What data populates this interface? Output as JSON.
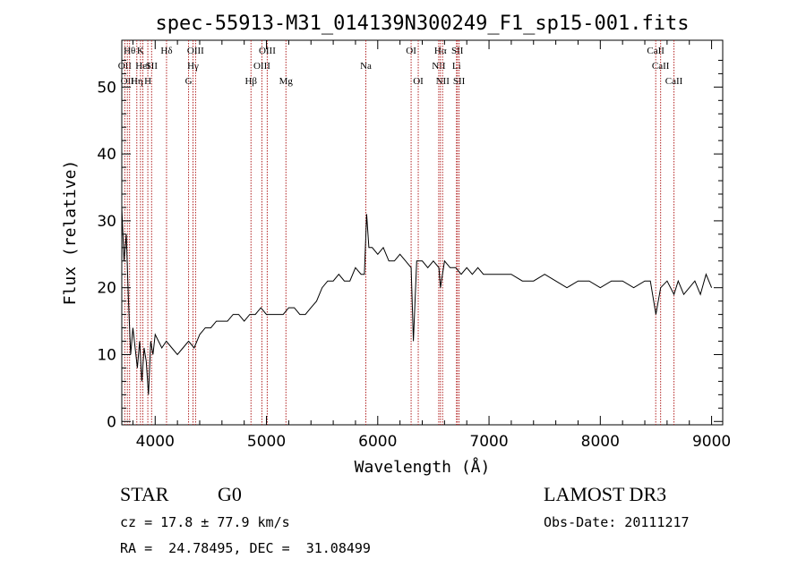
{
  "title": "spec-55913-M31_014139N300249_F1_sp15-001.fits",
  "info": {
    "class_label": "STAR",
    "subclass_label": "G0",
    "survey_label": "LAMOST DR3",
    "cz_text": "cz = 17.8 ± 77.9 km/s",
    "obsdate_text": "Obs-Date: 20111217",
    "radec_text": "RA =  24.78495, DEC =  31.08499"
  },
  "chart_data": {
    "type": "line",
    "title": "spec-55913-M31_014139N300249_F1_sp15-001.fits",
    "xlabel": "Wavelength (Å)",
    "ylabel": "Flux (relative)",
    "xlim": [
      3700,
      9100
    ],
    "ylim": [
      -0.5,
      57
    ],
    "xticks": [
      4000,
      5000,
      6000,
      7000,
      8000,
      9000
    ],
    "yticks": [
      0,
      10,
      20,
      30,
      40,
      50
    ],
    "grid": false,
    "line_color": "#000000",
    "marker_color": "#b22222",
    "series": [
      {
        "x": [
          3700,
          3720,
          3740,
          3760,
          3780,
          3800,
          3820,
          3840,
          3860,
          3880,
          3900,
          3920,
          3940,
          3960,
          3980,
          4000,
          4030,
          4060,
          4100,
          4150,
          4200,
          4250,
          4300,
          4350,
          4400,
          4450,
          4500,
          4550,
          4600,
          4650,
          4700,
          4750,
          4800,
          4850,
          4900,
          4950,
          5000,
          5050,
          5100,
          5150,
          5200,
          5250,
          5300,
          5350,
          5400,
          5450,
          5500,
          5550,
          5600,
          5650,
          5700,
          5750,
          5800,
          5850,
          5880,
          5900,
          5920,
          5950,
          6000,
          6050,
          6100,
          6150,
          6200,
          6250,
          6300,
          6320,
          6350,
          6400,
          6450,
          6500,
          6550,
          6563,
          6600,
          6650,
          6700,
          6750,
          6800,
          6850,
          6900,
          6950,
          7000,
          7100,
          7200,
          7300,
          7400,
          7500,
          7600,
          7700,
          7800,
          7900,
          8000,
          8100,
          8200,
          8300,
          8400,
          8450,
          8500,
          8542,
          8600,
          8662,
          8700,
          8750,
          8800,
          8850,
          8900,
          8950,
          9000
        ],
        "y": [
          32,
          24,
          28,
          18,
          10,
          14,
          11,
          8,
          12,
          6,
          11,
          9,
          4,
          12,
          10,
          13,
          12,
          11,
          12,
          11,
          10,
          11,
          12,
          11,
          13,
          14,
          14,
          15,
          15,
          15,
          16,
          16,
          15,
          16,
          16,
          17,
          16,
          16,
          16,
          16,
          17,
          17,
          16,
          16,
          17,
          18,
          20,
          21,
          21,
          22,
          21,
          21,
          23,
          22,
          22,
          31,
          26,
          26,
          25,
          26,
          24,
          24,
          25,
          24,
          23,
          12,
          24,
          24,
          23,
          24,
          23,
          20,
          24,
          23,
          23,
          22,
          23,
          22,
          23,
          22,
          22,
          22,
          22,
          21,
          21,
          22,
          21,
          20,
          21,
          21,
          20,
          21,
          21,
          20,
          21,
          21,
          16,
          20,
          21,
          19,
          21,
          19,
          20,
          21,
          19,
          22,
          20
        ]
      }
    ],
    "line_markers": [
      {
        "wl": 3727,
        "label": "OII",
        "row": 1
      },
      {
        "wl": 3750,
        "label": "OII",
        "row": 2
      },
      {
        "wl": 3770,
        "label": "Hθ",
        "row": 0
      },
      {
        "wl": 3835,
        "label": "Hη",
        "row": 2
      },
      {
        "wl": 3868,
        "label": "K",
        "row": 0
      },
      {
        "wl": 3889,
        "label": "HeI",
        "row": 1
      },
      {
        "wl": 3934,
        "label": "H",
        "row": 2
      },
      {
        "wl": 3968,
        "label": "SII",
        "row": 1
      },
      {
        "wl": 4102,
        "label": "Hδ",
        "row": 0
      },
      {
        "wl": 4300,
        "label": "G",
        "row": 2
      },
      {
        "wl": 4340,
        "label": "Hγ",
        "row": 1
      },
      {
        "wl": 4363,
        "label": "OIII",
        "row": 0
      },
      {
        "wl": 4861,
        "label": "Hβ",
        "row": 2
      },
      {
        "wl": 4959,
        "label": "OIII",
        "row": 1
      },
      {
        "wl": 5007,
        "label": "OIII",
        "row": 0
      },
      {
        "wl": 5175,
        "label": "Mg",
        "row": 2
      },
      {
        "wl": 5893,
        "label": "Na",
        "row": 1
      },
      {
        "wl": 6300,
        "label": "OI",
        "row": 0
      },
      {
        "wl": 6364,
        "label": "OI",
        "row": 2
      },
      {
        "wl": 6548,
        "label": "NII",
        "row": 1
      },
      {
        "wl": 6563,
        "label": "Hα",
        "row": 0
      },
      {
        "wl": 6583,
        "label": "NII",
        "row": 2
      },
      {
        "wl": 6708,
        "label": "Li",
        "row": 1
      },
      {
        "wl": 6716,
        "label": "SII",
        "row": 0
      },
      {
        "wl": 6731,
        "label": "SII",
        "row": 2
      },
      {
        "wl": 8498,
        "label": "CaII",
        "row": 0
      },
      {
        "wl": 8542,
        "label": "CaII",
        "row": 1
      },
      {
        "wl": 8662,
        "label": "CaII",
        "row": 2
      }
    ]
  }
}
